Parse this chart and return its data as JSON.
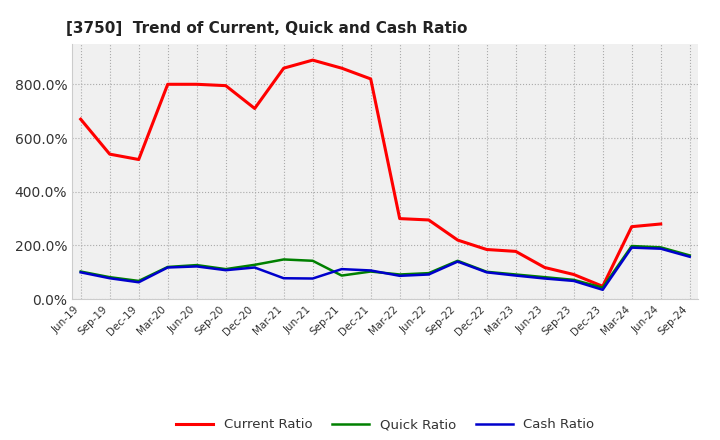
{
  "title": "[3750]  Trend of Current, Quick and Cash Ratio",
  "labels": [
    "Jun-19",
    "Sep-19",
    "Dec-19",
    "Mar-20",
    "Jun-20",
    "Sep-20",
    "Dec-20",
    "Mar-21",
    "Jun-21",
    "Sep-21",
    "Dec-21",
    "Mar-22",
    "Jun-22",
    "Sep-22",
    "Dec-22",
    "Mar-23",
    "Jun-23",
    "Sep-23",
    "Dec-23",
    "Mar-24",
    "Jun-24",
    "Sep-24"
  ],
  "current_ratio": [
    670,
    540,
    520,
    800,
    800,
    795,
    710,
    860,
    890,
    860,
    820,
    300,
    295,
    220,
    185,
    178,
    118,
    92,
    48,
    270,
    280,
    null
  ],
  "quick_ratio": [
    103,
    82,
    68,
    120,
    127,
    112,
    128,
    148,
    143,
    88,
    103,
    92,
    97,
    143,
    102,
    92,
    82,
    72,
    43,
    198,
    193,
    163
  ],
  "cash_ratio": [
    100,
    78,
    63,
    118,
    122,
    108,
    118,
    78,
    77,
    112,
    107,
    87,
    92,
    140,
    100,
    88,
    77,
    68,
    35,
    192,
    188,
    158
  ],
  "current_color": "#ff0000",
  "quick_color": "#008000",
  "cash_color": "#0000cc",
  "ylim": [
    0,
    950
  ],
  "yticks": [
    0,
    200,
    400,
    600,
    800
  ],
  "bg_color": "#ffffff",
  "plot_bg": "#f0f0f0",
  "grid_color": "#aaaaaa"
}
